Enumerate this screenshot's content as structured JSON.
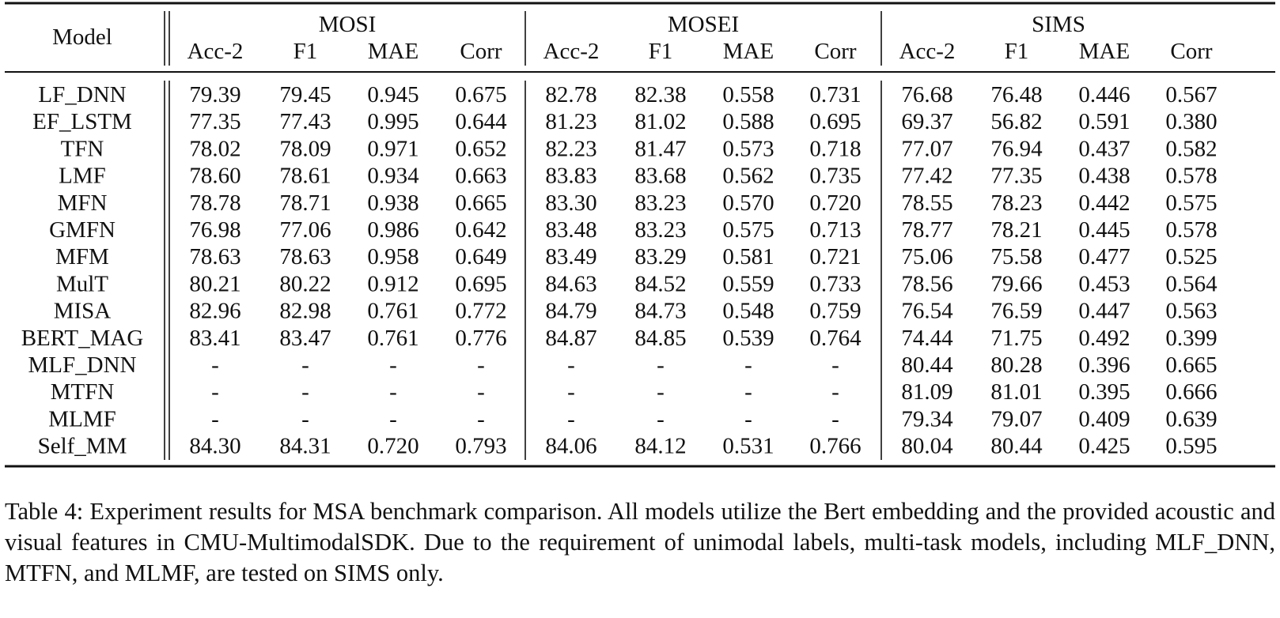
{
  "table": {
    "model_header": "Model",
    "groups": [
      {
        "name": "MOSI",
        "metrics": [
          "Acc-2",
          "F1",
          "MAE",
          "Corr"
        ]
      },
      {
        "name": "MOSEI",
        "metrics": [
          "Acc-2",
          "F1",
          "MAE",
          "Corr"
        ]
      },
      {
        "name": "SIMS",
        "metrics": [
          "Acc-2",
          "F1",
          "MAE",
          "Corr"
        ]
      }
    ],
    "rows": [
      {
        "model": "LF_DNN",
        "values": [
          "79.39",
          "79.45",
          "0.945",
          "0.675",
          "82.78",
          "82.38",
          "0.558",
          "0.731",
          "76.68",
          "76.48",
          "0.446",
          "0.567"
        ]
      },
      {
        "model": "EF_LSTM",
        "values": [
          "77.35",
          "77.43",
          "0.995",
          "0.644",
          "81.23",
          "81.02",
          "0.588",
          "0.695",
          "69.37",
          "56.82",
          "0.591",
          "0.380"
        ]
      },
      {
        "model": "TFN",
        "values": [
          "78.02",
          "78.09",
          "0.971",
          "0.652",
          "82.23",
          "81.47",
          "0.573",
          "0.718",
          "77.07",
          "76.94",
          "0.437",
          "0.582"
        ]
      },
      {
        "model": "LMF",
        "values": [
          "78.60",
          "78.61",
          "0.934",
          "0.663",
          "83.83",
          "83.68",
          "0.562",
          "0.735",
          "77.42",
          "77.35",
          "0.438",
          "0.578"
        ]
      },
      {
        "model": "MFN",
        "values": [
          "78.78",
          "78.71",
          "0.938",
          "0.665",
          "83.30",
          "83.23",
          "0.570",
          "0.720",
          "78.55",
          "78.23",
          "0.442",
          "0.575"
        ]
      },
      {
        "model": "GMFN",
        "values": [
          "76.98",
          "77.06",
          "0.986",
          "0.642",
          "83.48",
          "83.23",
          "0.575",
          "0.713",
          "78.77",
          "78.21",
          "0.445",
          "0.578"
        ]
      },
      {
        "model": "MFM",
        "values": [
          "78.63",
          "78.63",
          "0.958",
          "0.649",
          "83.49",
          "83.29",
          "0.581",
          "0.721",
          "75.06",
          "75.58",
          "0.477",
          "0.525"
        ]
      },
      {
        "model": "MulT",
        "values": [
          "80.21",
          "80.22",
          "0.912",
          "0.695",
          "84.63",
          "84.52",
          "0.559",
          "0.733",
          "78.56",
          "79.66",
          "0.453",
          "0.564"
        ]
      },
      {
        "model": "MISA",
        "values": [
          "82.96",
          "82.98",
          "0.761",
          "0.772",
          "84.79",
          "84.73",
          "0.548",
          "0.759",
          "76.54",
          "76.59",
          "0.447",
          "0.563"
        ]
      },
      {
        "model": "BERT_MAG",
        "values": [
          "83.41",
          "83.47",
          "0.761",
          "0.776",
          "84.87",
          "84.85",
          "0.539",
          "0.764",
          "74.44",
          "71.75",
          "0.492",
          "0.399"
        ]
      },
      {
        "model": "MLF_DNN",
        "values": [
          "-",
          "-",
          "-",
          "-",
          "-",
          "-",
          "-",
          "-",
          "80.44",
          "80.28",
          "0.396",
          "0.665"
        ]
      },
      {
        "model": "MTFN",
        "values": [
          "-",
          "-",
          "-",
          "-",
          "-",
          "-",
          "-",
          "-",
          "81.09",
          "81.01",
          "0.395",
          "0.666"
        ]
      },
      {
        "model": "MLMF",
        "values": [
          "-",
          "-",
          "-",
          "-",
          "-",
          "-",
          "-",
          "-",
          "79.34",
          "79.07",
          "0.409",
          "0.639"
        ]
      },
      {
        "model": "Self_MM",
        "values": [
          "84.30",
          "84.31",
          "0.720",
          "0.793",
          "84.06",
          "84.12",
          "0.531",
          "0.766",
          "80.04",
          "80.44",
          "0.425",
          "0.595"
        ]
      }
    ]
  },
  "caption": "Table 4: Experiment results for MSA benchmark comparison. All models utilize the Bert embedding and the provided acoustic and visual features in CMU-MultimodalSDK. Due to the requirement of unimodal labels, multi-task models, including MLF_DNN, MTFN, and MLMF, are tested on SIMS only."
}
